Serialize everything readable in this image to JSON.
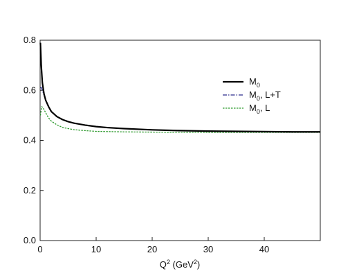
{
  "chart_data": {
    "type": "line",
    "xlabel": {
      "base": "Q",
      "sup": "2",
      "mid": " (GeV",
      "sup2": "2",
      "end": ")"
    },
    "ylabel": "",
    "xlim": [
      0,
      50
    ],
    "ylim": [
      0,
      0.8
    ],
    "x_ticks": [
      0,
      10,
      20,
      30,
      40
    ],
    "x_tick_labels": [
      "0",
      "10",
      "20",
      "30",
      "40"
    ],
    "y_ticks": [
      0.0,
      0.2,
      0.4,
      0.6,
      0.8
    ],
    "y_tick_labels": [
      "0.0",
      "0.2",
      "0.4",
      "0.6",
      "0.8"
    ],
    "grid": false,
    "legend_position": "right",
    "series": [
      {
        "name": "M0",
        "legend_parts": {
          "base": "M",
          "sub": "0",
          "rest": ""
        },
        "color": "#000000",
        "style": "solid",
        "x": [
          0.05,
          0.2,
          0.4,
          0.7,
          1.0,
          1.5,
          2,
          3,
          4,
          5,
          6,
          8,
          10,
          12,
          15,
          20,
          25,
          30,
          35,
          40,
          45,
          50
        ],
        "y": [
          0.79,
          0.7,
          0.63,
          0.585,
          0.56,
          0.535,
          0.515,
          0.495,
          0.483,
          0.475,
          0.469,
          0.461,
          0.455,
          0.451,
          0.447,
          0.442,
          0.439,
          0.437,
          0.436,
          0.435,
          0.434,
          0.434
        ]
      },
      {
        "name": "M0, L+T",
        "legend_parts": {
          "base": "M",
          "sub": "0",
          "rest": ", L+T"
        },
        "color": "#2b2b8c",
        "style": "dashdot",
        "x": [
          0.05,
          0.2,
          0.4,
          0.7,
          1.0,
          1.5,
          2,
          3,
          4,
          5,
          6,
          8,
          10,
          12,
          15,
          20,
          25,
          30,
          35,
          40,
          45,
          50
        ],
        "y": [
          0.61,
          0.612,
          0.6,
          0.58,
          0.56,
          0.535,
          0.515,
          0.495,
          0.483,
          0.475,
          0.469,
          0.461,
          0.455,
          0.451,
          0.447,
          0.442,
          0.439,
          0.437,
          0.436,
          0.435,
          0.434,
          0.434
        ]
      },
      {
        "name": "M0, L",
        "legend_parts": {
          "base": "M",
          "sub": "0",
          "rest": ", L"
        },
        "color": "#2e9a2e",
        "style": "dotted",
        "x": [
          0.05,
          0.3,
          0.6,
          1.0,
          1.5,
          2,
          3,
          4,
          5,
          6,
          8,
          10,
          15,
          20,
          30,
          40,
          50
        ],
        "y": [
          0.5,
          0.535,
          0.527,
          0.51,
          0.49,
          0.477,
          0.462,
          0.452,
          0.447,
          0.443,
          0.439,
          0.436,
          0.434,
          0.433,
          0.432,
          0.432,
          0.432
        ]
      }
    ]
  }
}
